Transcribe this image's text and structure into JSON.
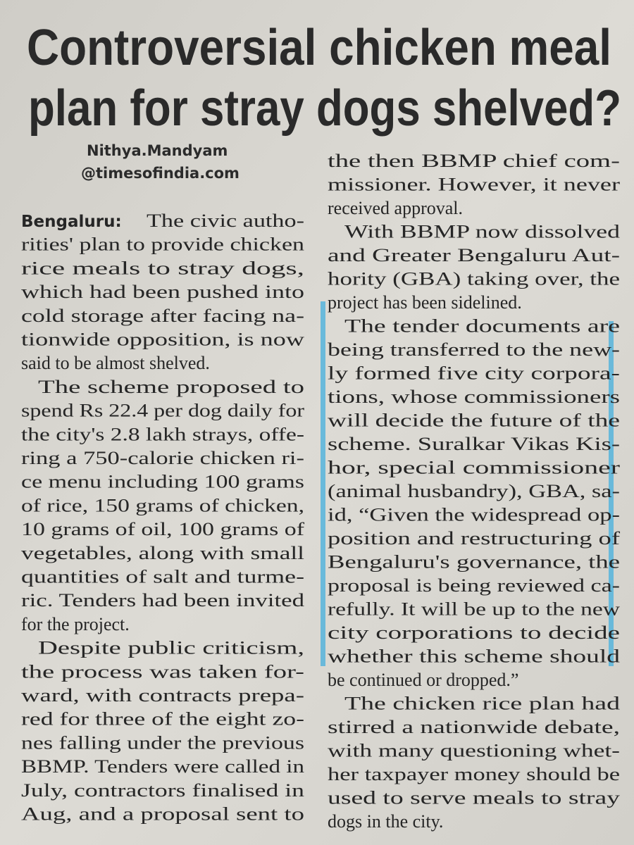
{
  "headline": [
    "Controversial chicken meal",
    "plan for stray dogs shelved?"
  ],
  "byline": {
    "name": "Nithya.Mandyam",
    "email": "@timesofindia.com"
  },
  "left_column": [
    {
      "dateline": "Bengaluru:",
      "lines": [
        "The civic autho-",
        "rities' plan to provide chicken",
        "rice meals to stray dogs,",
        "which had been pushed into",
        "cold storage after facing na-",
        "tionwide opposition, is now",
        "said to be almost shelved."
      ]
    },
    {
      "lines": [
        "The scheme proposed to",
        "spend Rs 22.4 per dog daily for",
        "the city's 2.8 lakh strays, offe-",
        "ring a 750-calorie chicken ri-",
        "ce menu including 100 grams",
        "of rice, 150 grams of chicken,",
        "10 grams of oil, 100 grams of",
        "vegetables, along with small",
        "quantities of salt and turme-",
        "ric. Tenders had been invited",
        "for the project."
      ]
    },
    {
      "lines": [
        "Despite public criticism,",
        "the process was taken for-",
        "ward, with contracts prepa-",
        "red for three of the eight zo-",
        "nes falling under the previous",
        "BBMP. Tenders were called in",
        "July, contractors finalised in",
        "Aug, and a proposal sent to"
      ]
    }
  ],
  "right_column": [
    {
      "lines": [
        "the then BBMP chief com-",
        "missioner. However, it never",
        "received approval."
      ]
    },
    {
      "lines": [
        "With BBMP now dissolved",
        "and Greater Bengaluru Aut-",
        "hority (GBA) taking over, the",
        "project has been sidelined."
      ]
    },
    {
      "lines": [
        "The tender documents are",
        "being transferred to the new-",
        "ly formed five city corpora-",
        "tions, whose commissioners",
        "will decide the future of the",
        "scheme. Suralkar Vikas Kis-",
        "hor, special commissioner",
        "(animal husbandry), GBA, sa-",
        "id, “Given the widespread op-",
        "position and restructuring of",
        "Bengaluru's governance, the",
        "proposal is being reviewed ca-",
        "refully. It will be up to the new",
        "city corporations to decide",
        "whether this scheme should",
        "be continued or dropped.”"
      ]
    },
    {
      "lines": [
        "The chicken rice plan had",
        "stirred a nationwide debate,",
        "with many questioning whet-",
        "her taxpayer money should be",
        "used to serve meals to stray",
        "dogs in the city."
      ]
    }
  ]
}
